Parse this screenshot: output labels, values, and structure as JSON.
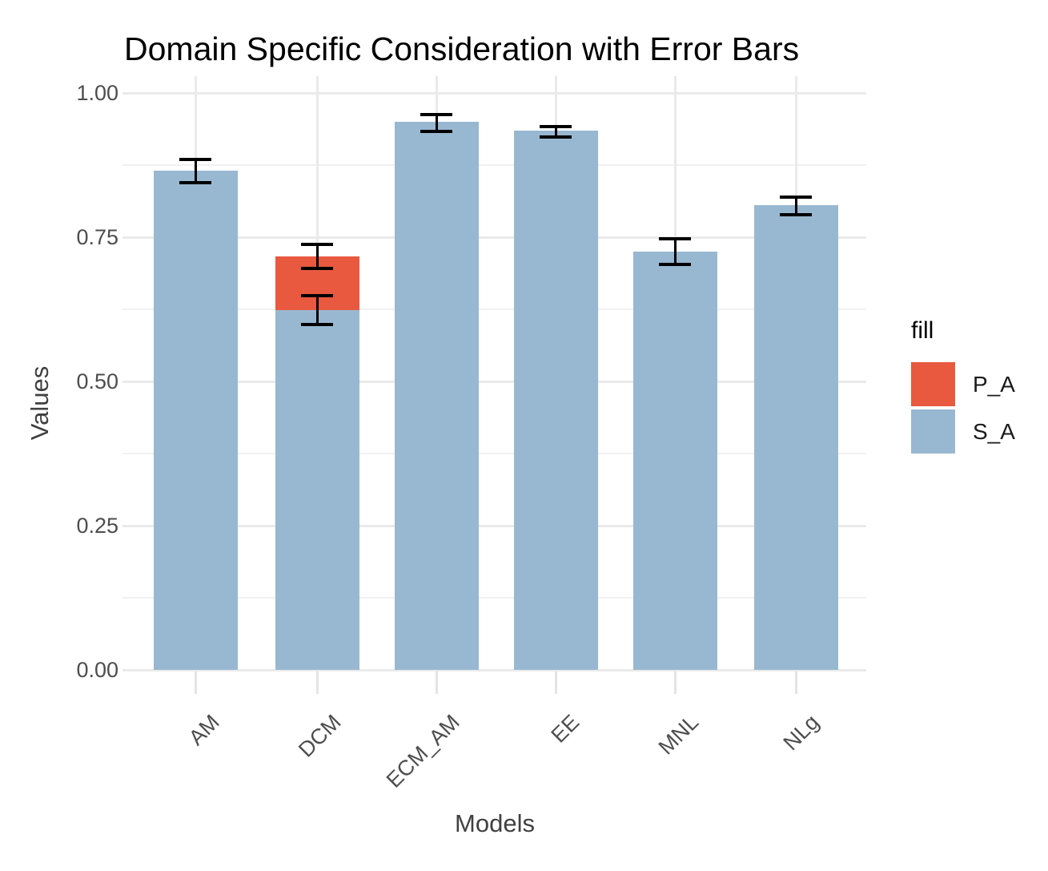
{
  "chart_data": {
    "type": "bar",
    "stacked": true,
    "title": "Domain Specific Consideration with Error Bars",
    "xlabel": "Models",
    "ylabel": "Values",
    "categories": [
      "AM",
      "DCM",
      "ECM_AM",
      "EE",
      "MNL",
      "NLg"
    ],
    "series": [
      {
        "name": "P_A",
        "color": "#E8593F",
        "values": [
          0,
          0.093,
          0,
          0,
          0,
          0
        ]
      },
      {
        "name": "S_A",
        "color": "#98B8D2",
        "values": [
          0.865,
          0.624,
          0.95,
          0.935,
          0.725,
          0.806
        ]
      }
    ],
    "error_bars": [
      {
        "category": "AM",
        "center": 0.865,
        "low": 0.845,
        "high": 0.885
      },
      {
        "category": "DCM",
        "center": 0.624,
        "low": 0.598,
        "high": 0.648
      },
      {
        "category": "DCM",
        "center": 0.717,
        "low": 0.696,
        "high": 0.737
      },
      {
        "category": "ECM_AM",
        "center": 0.95,
        "low": 0.934,
        "high": 0.962
      },
      {
        "category": "EE",
        "center": 0.935,
        "low": 0.923,
        "high": 0.942
      },
      {
        "category": "MNL",
        "center": 0.725,
        "low": 0.703,
        "high": 0.747
      },
      {
        "category": "NLg",
        "center": 0.806,
        "low": 0.789,
        "high": 0.819
      }
    ],
    "ylim": [
      0,
      1.0
    ],
    "yticks": [
      0,
      0.25,
      0.5,
      0.75,
      1.0
    ],
    "ytick_labels": [
      "0.00",
      "0.25",
      "0.50",
      "0.75",
      "1.00"
    ],
    "minor_yticks": [
      0.125,
      0.375,
      0.625,
      0.875
    ],
    "grid": true,
    "legend": {
      "title": "fill",
      "position": "right",
      "entries": [
        {
          "label": "P_A",
          "color": "#E8593F"
        },
        {
          "label": "S_A",
          "color": "#98B8D2"
        }
      ]
    }
  }
}
